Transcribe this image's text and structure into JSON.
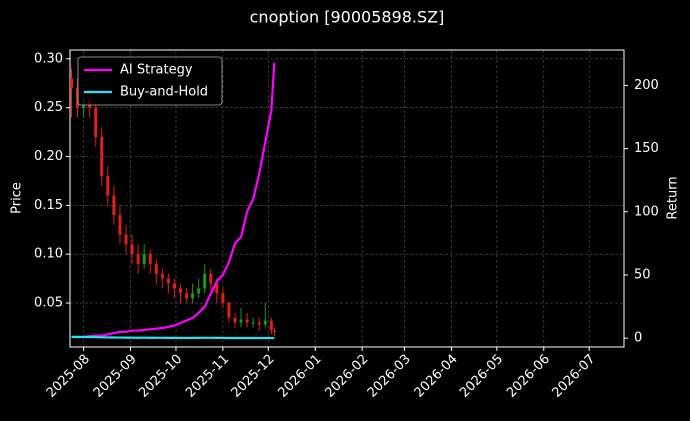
{
  "chart_data": {
    "type": "candlestick",
    "title": "cnoption [90005898.SZ]",
    "ylabel": "Price",
    "y2label": "Return",
    "x": [
      -8,
      -4,
      0,
      4,
      8,
      12,
      16,
      20,
      24,
      28,
      32,
      36,
      40,
      44,
      48,
      52,
      56,
      60,
      64,
      68,
      72,
      76,
      80,
      84,
      88,
      92,
      96,
      100,
      104,
      108,
      112,
      116,
      120,
      124,
      126
    ],
    "open": [
      0.28,
      0.27,
      0.25,
      0.26,
      0.25,
      0.22,
      0.18,
      0.16,
      0.14,
      0.12,
      0.11,
      0.1,
      0.09,
      0.1,
      0.09,
      0.08,
      0.075,
      0.07,
      0.065,
      0.06,
      0.055,
      0.06,
      0.065,
      0.08,
      0.07,
      0.06,
      0.05,
      0.035,
      0.03,
      0.033,
      0.03,
      0.03,
      0.028,
      0.032,
      0.022
    ],
    "high": [
      0.29,
      0.28,
      0.27,
      0.27,
      0.26,
      0.23,
      0.19,
      0.17,
      0.15,
      0.13,
      0.12,
      0.11,
      0.11,
      0.105,
      0.095,
      0.085,
      0.08,
      0.075,
      0.07,
      0.065,
      0.07,
      0.075,
      0.09,
      0.085,
      0.075,
      0.065,
      0.052,
      0.04,
      0.045,
      0.04,
      0.035,
      0.035,
      0.05,
      0.035,
      0.025
    ],
    "low": [
      0.24,
      0.24,
      0.24,
      0.24,
      0.21,
      0.17,
      0.15,
      0.13,
      0.11,
      0.1,
      0.09,
      0.08,
      0.085,
      0.08,
      0.07,
      0.065,
      0.06,
      0.055,
      0.05,
      0.05,
      0.05,
      0.055,
      0.06,
      0.06,
      0.05,
      0.045,
      0.03,
      0.025,
      0.025,
      0.025,
      0.025,
      0.022,
      0.025,
      0.018,
      0.016
    ],
    "close": [
      0.27,
      0.25,
      0.26,
      0.25,
      0.22,
      0.18,
      0.16,
      0.14,
      0.12,
      0.11,
      0.1,
      0.09,
      0.1,
      0.09,
      0.08,
      0.075,
      0.07,
      0.065,
      0.06,
      0.055,
      0.06,
      0.065,
      0.08,
      0.07,
      0.06,
      0.05,
      0.035,
      0.03,
      0.033,
      0.03,
      0.03,
      0.028,
      0.032,
      0.022,
      0.02
    ],
    "up_color": "#1a9a1a",
    "down_color": "#e0201a",
    "series": [
      {
        "name": "AI Strategy",
        "color": "#ff00ff",
        "axis": "y2",
        "values": [
          1,
          1,
          1,
          1.5,
          2,
          2,
          3,
          4,
          5,
          5,
          6,
          6,
          6.5,
          7,
          7.5,
          8,
          9,
          10,
          12,
          14,
          16,
          20,
          25,
          35,
          45,
          50,
          60,
          75,
          80,
          100,
          110,
          130,
          155,
          180,
          218
        ]
      },
      {
        "name": "Buy-and-Hold",
        "color": "#22e5f0",
        "axis": "y2",
        "values": [
          1,
          0.9,
          0.95,
          0.9,
          0.8,
          0.65,
          0.55,
          0.5,
          0.45,
          0.4,
          0.35,
          0.3,
          0.35,
          0.3,
          0.28,
          0.25,
          0.23,
          0.22,
          0.2,
          0.18,
          0.2,
          0.22,
          0.28,
          0.25,
          0.2,
          0.17,
          0.12,
          0.1,
          0.11,
          0.1,
          0.1,
          0.09,
          0.1,
          0.07,
          0.06
        ]
      }
    ],
    "xlim": [
      -9,
      357
    ],
    "xticks": [
      {
        "value": 0,
        "label": "2025-08"
      },
      {
        "value": 31,
        "label": "2025-09"
      },
      {
        "value": 61,
        "label": "2025-10"
      },
      {
        "value": 92,
        "label": "2025-11"
      },
      {
        "value": 122,
        "label": "2025-12"
      },
      {
        "value": 153,
        "label": "2026-01"
      },
      {
        "value": 184,
        "label": "2026-02"
      },
      {
        "value": 212,
        "label": "2026-03"
      },
      {
        "value": 243,
        "label": "2026-04"
      },
      {
        "value": 273,
        "label": "2026-05"
      },
      {
        "value": 304,
        "label": "2026-06"
      },
      {
        "value": 334,
        "label": "2026-07"
      }
    ],
    "ylim": [
      0.005,
      0.309
    ],
    "yticks": [
      0.05,
      {
        "value": 0.1,
        "label": "0.10"
      },
      0.15,
      {
        "value": 0.2,
        "label": "0.20"
      },
      0.25,
      {
        "value": 0.3,
        "label": "0.30"
      }
    ],
    "y2lim": [
      -7,
      228
    ],
    "y2ticks": [
      0,
      50,
      100,
      150,
      200
    ],
    "grid": true,
    "legend": "upper left"
  }
}
